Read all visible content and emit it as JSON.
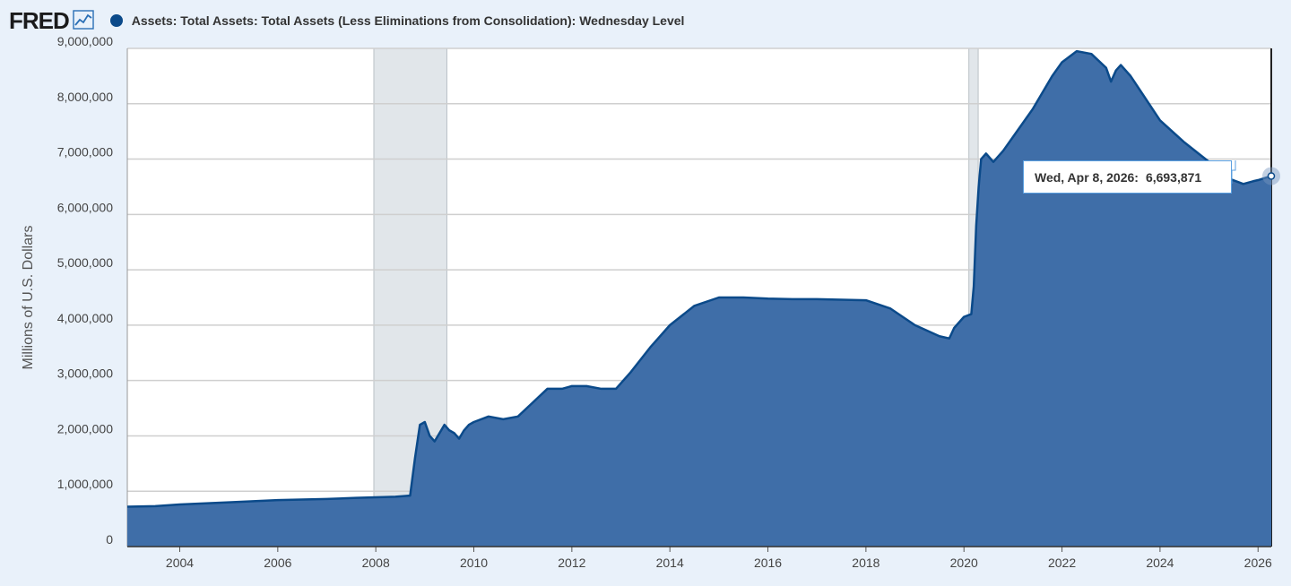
{
  "header": {
    "logo_text": "FRED",
    "logo_icon": "trend-line-icon",
    "series_title": "Assets: Total Assets: Total Assets (Less Eliminations from Consolidation): Wednesday Level"
  },
  "tooltip": {
    "date": "Wed, Apr 8, 2026:",
    "value": "6,693,871"
  },
  "colors": {
    "series": "#0b4a8a",
    "fill": "#3f6ea8",
    "recession": "#e1e6ea",
    "grid": "#cfcfcf",
    "background": "#e9f1fa"
  },
  "chart_data": {
    "type": "area",
    "title": "Assets: Total Assets: Total Assets (Less Eliminations from Consolidation): Wednesday Level",
    "ylabel": "Millions of U.S. Dollars",
    "xlabel": "",
    "xlim": [
      2002.93,
      2026.27
    ],
    "ylim": [
      0,
      9000000
    ],
    "x_ticks": [
      "2004",
      "2006",
      "2008",
      "2010",
      "2012",
      "2014",
      "2016",
      "2018",
      "2020",
      "2022",
      "2024",
      "2026"
    ],
    "x_tick_values": [
      2004,
      2006,
      2008,
      2010,
      2012,
      2014,
      2016,
      2018,
      2020,
      2022,
      2024,
      2026
    ],
    "y_ticks": [
      "0",
      "1,000,000",
      "2,000,000",
      "3,000,000",
      "4,000,000",
      "5,000,000",
      "6,000,000",
      "7,000,000",
      "8,000,000",
      "9,000,000"
    ],
    "y_tick_values": [
      0,
      1000000,
      2000000,
      3000000,
      4000000,
      5000000,
      6000000,
      7000000,
      8000000,
      9000000
    ],
    "grid": true,
    "legend": "top-left",
    "recessions": [
      [
        2007.96,
        2009.45
      ],
      [
        2020.1,
        2020.29
      ]
    ],
    "series": [
      {
        "name": "Assets: Total Assets: Total Assets (Less Eliminations from Consolidation): Wednesday Level",
        "x": [
          2002.93,
          2003.5,
          2004,
          2005,
          2006,
          2007,
          2007.6,
          2008.0,
          2008.4,
          2008.7,
          2008.8,
          2008.9,
          2009.0,
          2009.1,
          2009.2,
          2009.3,
          2009.4,
          2009.5,
          2009.6,
          2009.7,
          2009.8,
          2009.9,
          2010.0,
          2010.3,
          2010.6,
          2010.9,
          2011.2,
          2011.5,
          2011.8,
          2012.0,
          2012.3,
          2012.6,
          2012.9,
          2013.2,
          2013.6,
          2014.0,
          2014.5,
          2015.0,
          2015.5,
          2016.0,
          2016.5,
          2017.0,
          2017.5,
          2018.0,
          2018.5,
          2019.0,
          2019.5,
          2019.7,
          2019.8,
          2020.0,
          2020.15,
          2020.2,
          2020.25,
          2020.3,
          2020.35,
          2020.45,
          2020.6,
          2020.8,
          2021.0,
          2021.4,
          2021.8,
          2022.0,
          2022.3,
          2022.6,
          2022.9,
          2023.0,
          2023.1,
          2023.2,
          2023.4,
          2023.7,
          2024.0,
          2024.5,
          2025.0,
          2025.4,
          2025.7,
          2025.9,
          2026.0,
          2026.27
        ],
        "y": [
          720000,
          730000,
          760000,
          800000,
          840000,
          860000,
          880000,
          890000,
          900000,
          920000,
          1600000,
          2200000,
          2250000,
          2000000,
          1900000,
          2050000,
          2200000,
          2100000,
          2050000,
          1950000,
          2100000,
          2200000,
          2250000,
          2350000,
          2300000,
          2350000,
          2600000,
          2850000,
          2850000,
          2900000,
          2900000,
          2850000,
          2850000,
          3150000,
          3600000,
          4000000,
          4350000,
          4500000,
          4500000,
          4480000,
          4470000,
          4470000,
          4460000,
          4450000,
          4300000,
          4000000,
          3800000,
          3760000,
          3950000,
          4150000,
          4200000,
          4700000,
          5800000,
          6500000,
          7000000,
          7100000,
          6950000,
          7150000,
          7400000,
          7900000,
          8500000,
          8750000,
          8950000,
          8900000,
          8650000,
          8400000,
          8600000,
          8700000,
          8500000,
          8100000,
          7700000,
          7300000,
          6950000,
          6650000,
          6550000,
          6600000,
          6620000,
          6693871
        ]
      }
    ]
  }
}
